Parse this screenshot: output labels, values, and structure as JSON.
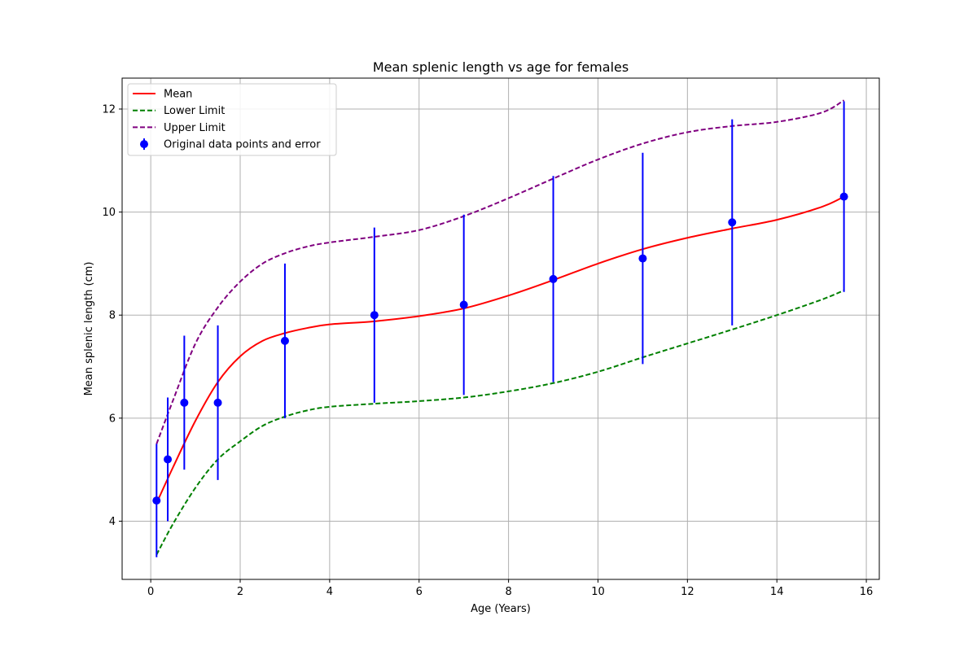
{
  "chart_data": {
    "type": "line",
    "title": "Mean splenic length vs age for females",
    "xlabel": "Age (Years)",
    "ylabel": "Mean splenic length (cm)",
    "xlim": [
      -0.64,
      16.29
    ],
    "ylim": [
      2.87,
      12.6
    ],
    "xticks": [
      0,
      2,
      4,
      6,
      8,
      10,
      12,
      14,
      16
    ],
    "yticks": [
      4,
      6,
      8,
      10,
      12
    ],
    "grid": true,
    "legend_position": "upper left",
    "legend": [
      "Mean",
      "Lower Limit",
      "Upper Limit",
      "Original data points and error"
    ],
    "series": [
      {
        "name": "Mean",
        "style": "solid",
        "color": "#ff0000",
        "x": [
          0.13,
          0.5,
          1,
          1.5,
          2,
          2.5,
          3,
          3.5,
          4,
          5,
          6,
          7,
          8,
          9,
          10,
          11,
          12,
          13,
          14,
          15,
          15.5
        ],
        "y": [
          4.35,
          5.05,
          5.95,
          6.7,
          7.2,
          7.5,
          7.65,
          7.75,
          7.82,
          7.88,
          7.98,
          8.13,
          8.38,
          8.68,
          9.0,
          9.28,
          9.5,
          9.68,
          9.85,
          10.1,
          10.3
        ]
      },
      {
        "name": "Lower Limit",
        "style": "dashed",
        "color": "#008000",
        "x": [
          0.13,
          0.5,
          1,
          1.5,
          2,
          2.5,
          3,
          3.5,
          4,
          5,
          6,
          7,
          8,
          9,
          10,
          11,
          12,
          13,
          14,
          15,
          15.5
        ],
        "y": [
          3.35,
          3.95,
          4.65,
          5.2,
          5.55,
          5.85,
          6.03,
          6.15,
          6.22,
          6.28,
          6.33,
          6.4,
          6.52,
          6.68,
          6.9,
          7.18,
          7.45,
          7.72,
          8.0,
          8.3,
          8.48
        ]
      },
      {
        "name": "Upper Limit",
        "style": "dashed",
        "color": "#800080",
        "x": [
          0.13,
          0.5,
          1,
          1.5,
          2,
          2.5,
          3,
          3.5,
          4,
          5,
          6,
          7,
          8,
          9,
          10,
          11,
          12,
          13,
          14,
          15,
          15.5
        ],
        "y": [
          5.5,
          6.35,
          7.45,
          8.15,
          8.65,
          9.0,
          9.2,
          9.33,
          9.41,
          9.52,
          9.65,
          9.92,
          10.27,
          10.65,
          11.02,
          11.33,
          11.55,
          11.67,
          11.75,
          11.93,
          12.17
        ]
      }
    ],
    "errorbar_series": {
      "name": "Original data points and error",
      "color": "#0000ff",
      "x": [
        0.13,
        0.38,
        0.75,
        1.5,
        3,
        5,
        7,
        9,
        11,
        13,
        15.5
      ],
      "y": [
        4.4,
        5.2,
        6.3,
        6.3,
        7.5,
        8.0,
        8.2,
        8.7,
        9.1,
        9.8,
        10.3
      ],
      "yerr": [
        1.1,
        1.2,
        1.3,
        1.5,
        1.5,
        1.7,
        1.75,
        2.0,
        2.05,
        2.0,
        1.85
      ]
    }
  }
}
